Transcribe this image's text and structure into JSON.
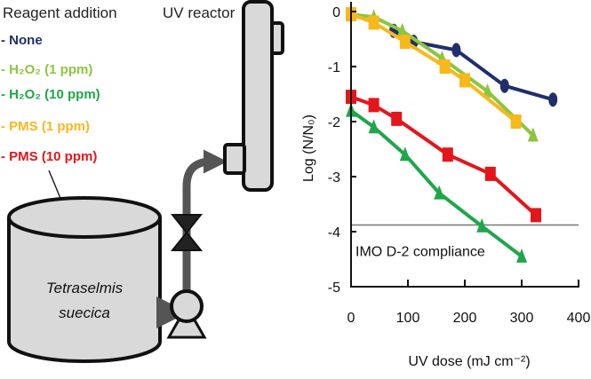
{
  "diagram": {
    "legend_title": "Reagent addition",
    "legend_items": [
      {
        "label": "- None",
        "color": "#1f2f6b"
      },
      {
        "label": "- H₂O₂ (1 ppm)",
        "color": "#8cc63f"
      },
      {
        "label": "- H₂O₂ (10 ppm)",
        "color": "#1fa64a"
      },
      {
        "label": "- PMS (1 ppm)",
        "color": "#f7b81c"
      },
      {
        "label": "- PMS (10 ppm)",
        "color": "#e3161b"
      }
    ],
    "reactor_label": "UV reactor",
    "tank_label_line1": "Tetraselmis",
    "tank_label_line2": "suecica",
    "reactor_fill": "#d9d9d9",
    "pipe_color": "#555555"
  },
  "chart_data": {
    "type": "scatter",
    "xlabel": "UV dose (mJ cm⁻²)",
    "ylabel": "Log (N/N₀)",
    "xlim": [
      0,
      400
    ],
    "ylim": [
      -5,
      0
    ],
    "xticks": [
      "0",
      "100",
      "200",
      "300",
      "400"
    ],
    "yticks": [
      "0",
      "-1",
      "-2",
      "-3",
      "-4",
      "-5"
    ],
    "grid": false,
    "annotation": {
      "text": "IMO D-2 compliance",
      "y": -3.88
    },
    "series": [
      {
        "key": "none",
        "marker": "circle",
        "color": "#1f2f6b",
        "x": [
          75,
          110,
          185,
          270,
          355
        ],
        "y": [
          -0.35,
          -0.55,
          -0.7,
          -1.35,
          -1.6
        ]
      },
      {
        "key": "h2o2_1",
        "marker": "triangle",
        "color": "#8cc63f",
        "x": [
          0,
          40,
          90,
          160,
          240,
          320
        ],
        "y": [
          -0.05,
          -0.1,
          -0.35,
          -0.85,
          -1.45,
          -2.25
        ]
      },
      {
        "key": "pms_1",
        "marker": "square",
        "color": "#f7b81c",
        "x": [
          0,
          40,
          95,
          165,
          200,
          290
        ],
        "y": [
          -0.05,
          -0.2,
          -0.55,
          -1.0,
          -1.25,
          -2.0
        ]
      },
      {
        "key": "pms_10",
        "marker": "square",
        "color": "#e3161b",
        "x": [
          0,
          40,
          80,
          170,
          245,
          325
        ],
        "y": [
          -1.55,
          -1.7,
          -1.95,
          -2.6,
          -2.95,
          -3.7
        ]
      },
      {
        "key": "h2o2_10",
        "marker": "triangle",
        "color": "#1fa64a",
        "x": [
          0,
          40,
          95,
          155,
          230,
          300
        ],
        "y": [
          -1.8,
          -2.1,
          -2.6,
          -3.3,
          -3.9,
          -4.45
        ]
      }
    ]
  }
}
